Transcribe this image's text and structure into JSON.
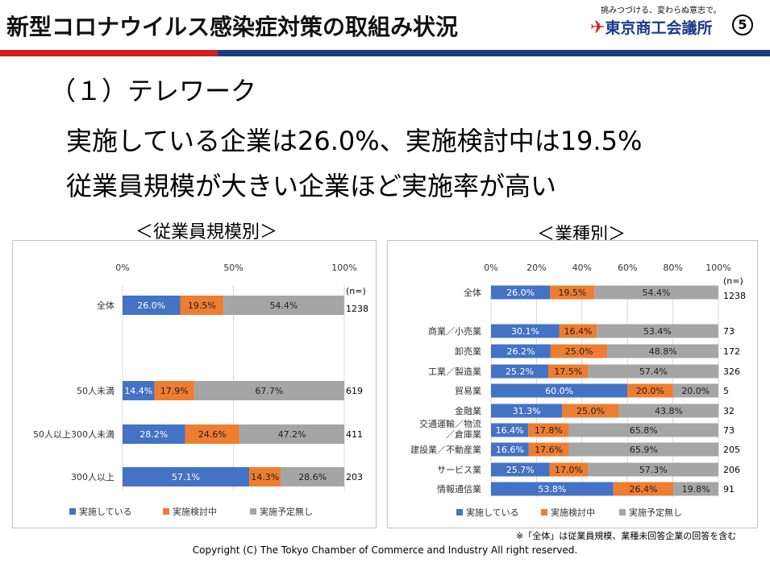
{
  "header": {
    "title": "新型コロナウイルス感染症対策の取組み状況",
    "slogan": "挑みつづける、変わらぬ意志で。",
    "logo_text": "東京商工会議所",
    "page_number": "⑤"
  },
  "section_heading": "（１）テレワーク",
  "summary": [
    "実施している企業は26.0%、実施検討中は19.5%",
    "従業員規模が大きい企業ほど実施率が高い"
  ],
  "footnote": "※「全体」は従業員規模、業種未回答企業の回答を含む",
  "copyright": "Copyright (C)  The Tokyo Chamber of Commerce and Industry All right reserved.",
  "colors": {
    "blue": "#4472c4",
    "orange": "#ed7d31",
    "gray": "#a5a5a5",
    "header_red": "#d21d25",
    "header_blue": "#1f3a85"
  },
  "chart_data": [
    {
      "type": "bar",
      "orientation": "horizontal-stacked-100",
      "title": "＜従業員規模別＞",
      "x_ticks": [
        "0%",
        "50%",
        "100%"
      ],
      "xlim": [
        0,
        100
      ],
      "n_label": "(n=)",
      "legend_position": "bottom",
      "categories": [
        "全体",
        "50人未満",
        "50人以上300人未満",
        "300人以上"
      ],
      "n": [
        "1238",
        "619",
        "411",
        "203"
      ],
      "series": [
        {
          "name": "実施している",
          "values": [
            26.0,
            14.4,
            28.2,
            57.1
          ]
        },
        {
          "name": "実施検討中",
          "values": [
            19.5,
            17.9,
            24.6,
            14.3
          ]
        },
        {
          "name": "実施予定無し",
          "values": [
            54.4,
            67.7,
            47.2,
            28.6
          ]
        }
      ]
    },
    {
      "type": "bar",
      "orientation": "horizontal-stacked-100",
      "title": "＜業種別＞",
      "x_ticks": [
        "0%",
        "20%",
        "40%",
        "60%",
        "80%",
        "100%"
      ],
      "xlim": [
        0,
        100
      ],
      "n_label": "(n=)",
      "legend_position": "bottom",
      "categories": [
        "全体",
        "商業／小売業",
        "卸売業",
        "工業／製造業",
        "貿易業",
        "金融業",
        "交通運輸／物流／倉庫業",
        "建設業／不動産業",
        "サービス業",
        "情報通信業"
      ],
      "category_lines": [
        [
          "全体"
        ],
        [
          "商業／小売業"
        ],
        [
          "卸売業"
        ],
        [
          "工業／製造業"
        ],
        [
          "貿易業"
        ],
        [
          "金融業"
        ],
        [
          "交通運輸／物流",
          "／倉庫業"
        ],
        [
          "建設業／不動産業"
        ],
        [
          "サービス業"
        ],
        [
          "情報通信業"
        ]
      ],
      "n": [
        "1238",
        "73",
        "172",
        "326",
        "5",
        "32",
        "73",
        "205",
        "206",
        "91"
      ],
      "series": [
        {
          "name": "実施している",
          "values": [
            26.0,
            30.1,
            26.2,
            25.2,
            60.0,
            31.3,
            16.4,
            16.6,
            25.7,
            53.8
          ]
        },
        {
          "name": "実施検討中",
          "values": [
            19.5,
            16.4,
            25.0,
            17.5,
            20.0,
            25.0,
            17.8,
            17.6,
            17.0,
            26.4
          ]
        },
        {
          "name": "実施予定無し",
          "values": [
            54.4,
            53.4,
            48.8,
            57.4,
            20.0,
            43.8,
            65.8,
            65.9,
            57.3,
            19.8
          ]
        }
      ]
    }
  ]
}
